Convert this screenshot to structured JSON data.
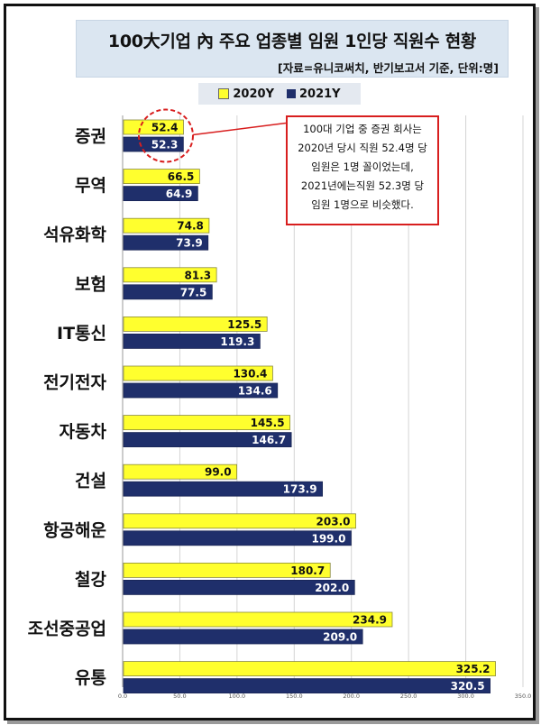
{
  "chart_data": {
    "type": "bar",
    "title": "100大기업 內 주요 업종별 임원 1인당 직원수 현황",
    "subtitle": "[자료=유니코써치, 반기보고서 기준, 단위:명]",
    "categories": [
      "증권",
      "무역",
      "석유화학",
      "보험",
      "IT통신",
      "전기전자",
      "자동차",
      "건설",
      "항공해운",
      "철강",
      "조선중공업",
      "유통"
    ],
    "series": [
      {
        "name": "2020Y",
        "color": "#ffff2e",
        "values": [
          52.4,
          66.5,
          74.8,
          81.3,
          125.5,
          130.4,
          145.5,
          99.0,
          203.0,
          180.7,
          234.9,
          325.2
        ]
      },
      {
        "name": "2021Y",
        "color": "#1f2f6b",
        "values": [
          52.3,
          64.9,
          73.9,
          77.5,
          119.3,
          134.6,
          146.7,
          173.9,
          199.0,
          202.0,
          209.0,
          320.5
        ]
      }
    ],
    "xlim": [
      0,
      350
    ],
    "xticks": [
      "0.0",
      "50.0",
      "100.0",
      "150.0",
      "200.0",
      "250.0",
      "300.0",
      "350.0"
    ],
    "orientation": "horizontal",
    "grid": true,
    "legend": "top"
  },
  "callout": {
    "lines": [
      "100대 기업 중 증권 회사는",
      "2020년 당시 직원 52.4명 당",
      "임원은 1명 꼴이었는데,",
      "2021년에는직원 52.3명 당",
      "임원 1명으로 비슷했다."
    ]
  }
}
